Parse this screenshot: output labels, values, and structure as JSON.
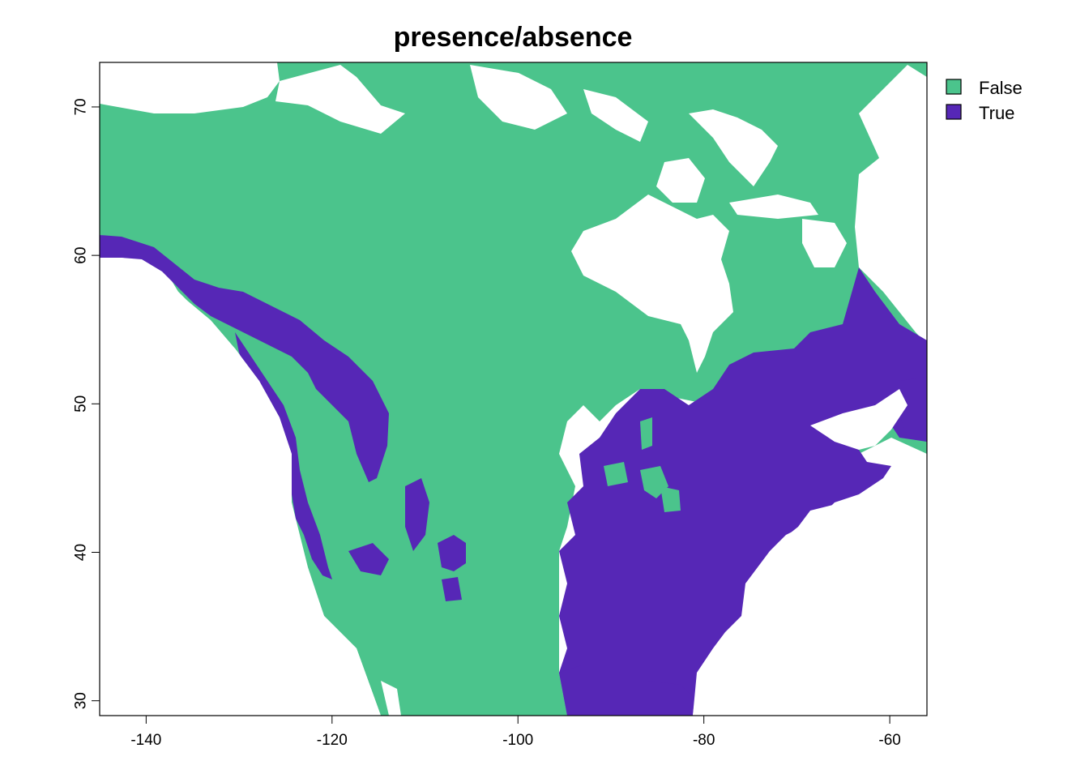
{
  "chart_data": {
    "type": "raster-map",
    "title": "presence/absence",
    "xlabel": "",
    "ylabel": "",
    "xlim": [
      -145,
      -56
    ],
    "ylim": [
      29,
      73
    ],
    "x_ticks": [
      -140,
      -120,
      -100,
      -80,
      -60
    ],
    "y_ticks": [
      30,
      40,
      50,
      60,
      70
    ],
    "x_tick_labels": [
      "-140",
      "-120",
      "-100",
      "-80",
      "-60"
    ],
    "y_tick_labels": [
      "30",
      "40",
      "50",
      "60",
      "70"
    ],
    "legend_position": "right",
    "categories": [
      {
        "label": "False",
        "color": "#4BC48C"
      },
      {
        "label": "True",
        "color": "#5627B6"
      }
    ],
    "background_color": "#ffffff"
  }
}
